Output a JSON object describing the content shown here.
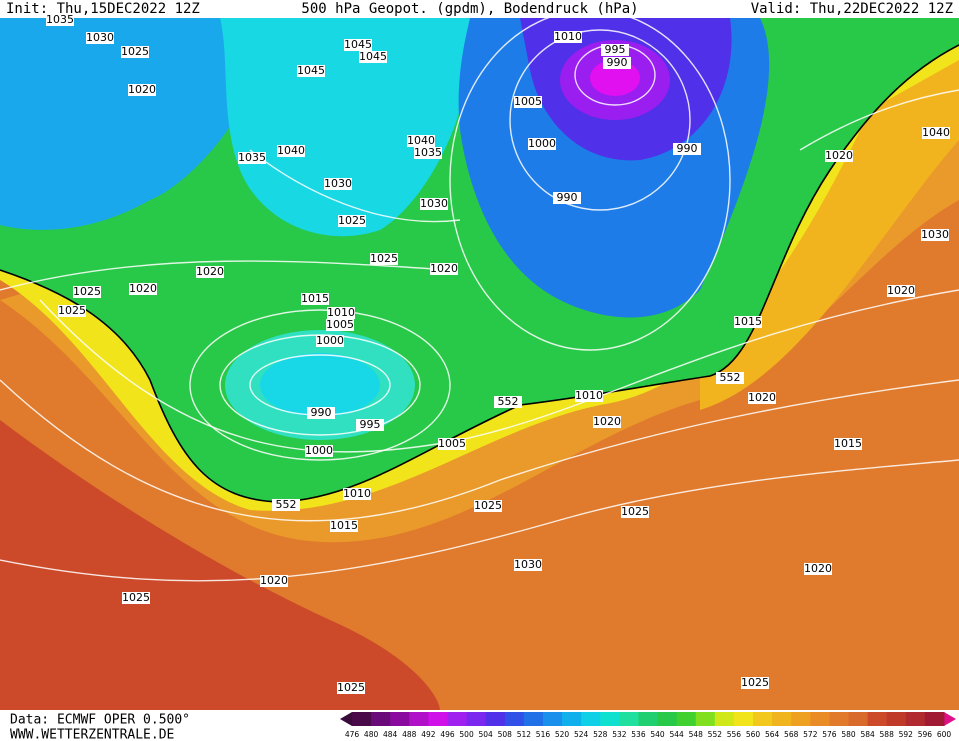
{
  "header": {
    "init": "Init: Thu,15DEC2022 12Z",
    "title": "500 hPa Geopot. (gpdm), Bodendruck (hPa)",
    "valid": "Valid: Thu,22DEC2022 12Z"
  },
  "footer": {
    "source": "Data: ECMWF OPER 0.500°",
    "site": "WWW.WETTERZENTRALE.DE"
  },
  "isobar_labels": [
    "1035",
    "1030",
    "1025",
    "1020",
    "1045",
    "1045",
    "1045",
    "1040",
    "1035",
    "1030",
    "1025",
    "1040",
    "1035",
    "1030",
    "1025",
    "1020",
    "1020",
    "1025",
    "1020",
    "1025",
    "1015",
    "1010",
    "1005",
    "1000",
    "990",
    "995",
    "1000",
    "1005",
    "1010",
    "1015",
    "1020",
    "1025",
    "1025",
    "1010",
    "995",
    "990",
    "1005",
    "1000",
    "990",
    "990",
    "1020",
    "1040",
    "1030",
    "1020",
    "1015",
    "1010",
    "1020",
    "1020",
    "1015",
    "1025",
    "1025",
    "1030",
    "1020",
    "1025"
  ],
  "contour_labels": [
    "552",
    "552",
    "552"
  ],
  "legend": {
    "labels": [
      476,
      480,
      484,
      488,
      492,
      496,
      500,
      504,
      508,
      512,
      516,
      520,
      524,
      528,
      532,
      536,
      540,
      544,
      548,
      552,
      556,
      560,
      564,
      568,
      572,
      576,
      580,
      584,
      588,
      592,
      596,
      600
    ]
  }
}
